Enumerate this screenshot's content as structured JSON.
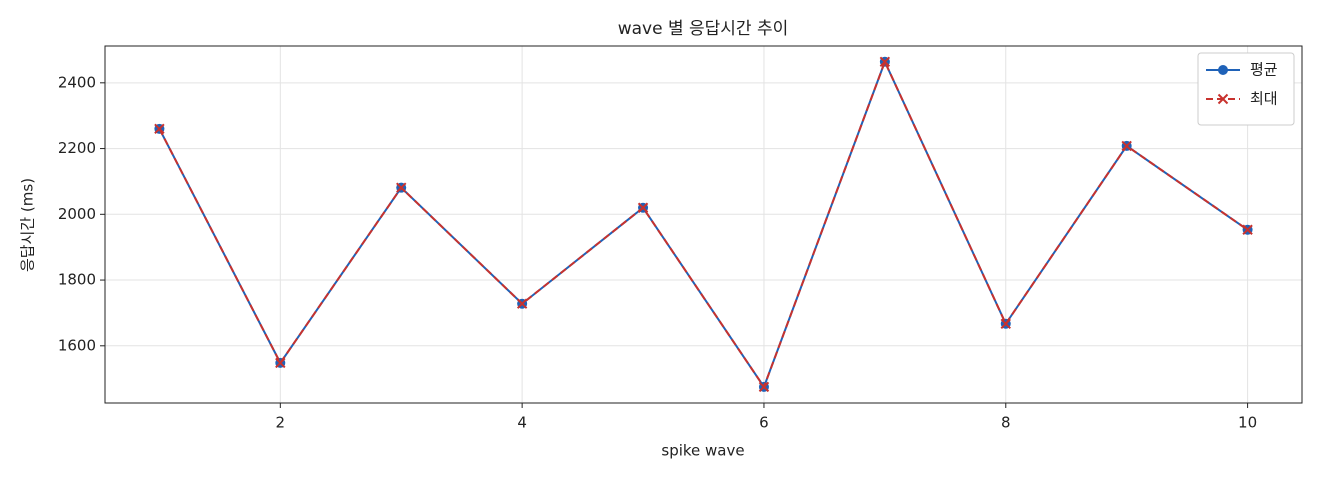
{
  "chart_data": {
    "type": "line",
    "title": "wave 별 응답시간 추이",
    "x_label": "spike wave",
    "y_label": "응답시간 (ms)",
    "x": [
      1,
      2,
      3,
      4,
      5,
      6,
      7,
      8,
      9,
      10
    ],
    "series": [
      {
        "name": "평균",
        "color": "#1f62b8",
        "dash": "solid",
        "marker": "circle",
        "values": [
          2260,
          1548,
          2081,
          1728,
          2020,
          1475,
          2464,
          1667,
          2208,
          1953
        ]
      },
      {
        "name": "최대",
        "color": "#c8322e",
        "dash": "dashed",
        "marker": "x",
        "values": [
          2260,
          1548,
          2081,
          1728,
          2020,
          1475,
          2464,
          1667,
          2208,
          1953
        ]
      }
    ],
    "xlim": [
      0.55,
      10.45
    ],
    "xticks": [
      2,
      4,
      6,
      8,
      10
    ],
    "ylim": [
      1426,
      2512
    ],
    "yticks": [
      1600,
      1800,
      2000,
      2200,
      2400
    ],
    "grid": true,
    "legend": "upper right"
  }
}
